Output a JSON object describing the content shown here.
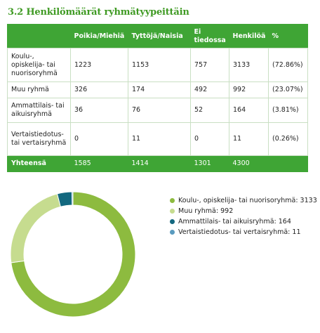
{
  "title": "3.2 Henkilömäärät ryhmätyypeittäin",
  "table": {
    "headers": [
      "",
      "Poikia/Miehiä",
      "Tyttöjä/Naisia",
      "Ei tiedossa",
      "Henkilöä",
      "%"
    ],
    "rows": [
      [
        "Koulu-, opiskelija- tai nuorisoryhmä",
        "1223",
        "1153",
        "757",
        "3133",
        "(72.86%)"
      ],
      [
        "Muu ryhmä",
        "326",
        "174",
        "492",
        "992",
        "(23.07%)"
      ],
      [
        "Ammattilais- tai aikuisryhmä",
        "36",
        "76",
        "52",
        "164",
        "(3.81%)"
      ],
      [
        "Vertaistiedotus- tai vertaisryhmä",
        "0",
        "11",
        "0",
        "11",
        "(0.26%)"
      ]
    ],
    "footer": [
      "Yhteensä",
      "1585",
      "1414",
      "1301",
      "4300",
      ""
    ]
  },
  "chart_data": {
    "type": "pie",
    "donut": true,
    "title": "",
    "categories": [
      "Koulu-, opiskelija- tai nuorisoryhmä",
      "Muu ryhmä",
      "Ammattilais- tai aikuisryhmä",
      "Vertaistiedotus- tai vertaisryhmä"
    ],
    "values": [
      3133,
      992,
      164,
      11
    ],
    "colors": [
      "#8dbb3f",
      "#c6dc8f",
      "#13687f",
      "#5a9bbf"
    ],
    "legend_labels": [
      "Koulu-, opiskelija- tai nuorisoryhmä: 3133",
      "Muu ryhmä: 992",
      "Ammattilais- tai aikuisryhmä: 164",
      "Vertaistiedotus- tai vertaisryhmä: 11"
    ],
    "legend_position": "right"
  }
}
